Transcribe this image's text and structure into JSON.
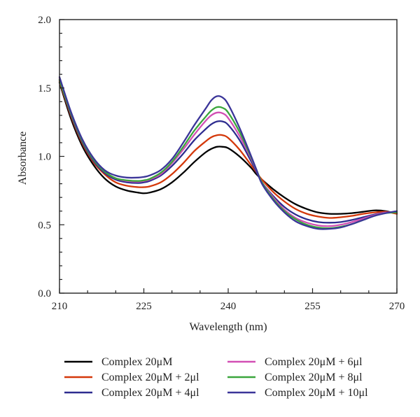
{
  "chart_data": {
    "type": "line",
    "title": "",
    "xlabel": "Wavelength (nm)",
    "ylabel": "Absorbance",
    "xlim": [
      210,
      270
    ],
    "ylim": [
      0.0,
      2.0
    ],
    "x_ticks": [
      210,
      225,
      240,
      255,
      270
    ],
    "x_tick_labels": [
      "210",
      "225",
      "240",
      "255",
      "270"
    ],
    "y_ticks": [
      0.0,
      0.5,
      1.0,
      1.5,
      2.0
    ],
    "y_tick_labels": [
      "0.0",
      "0.5",
      "1.0",
      "1.5",
      "2.0"
    ],
    "grid": false,
    "legend_position": "bottom",
    "x": [
      210,
      212,
      214,
      216,
      218,
      220,
      222,
      224,
      225,
      226,
      228,
      230,
      232,
      234,
      236,
      237,
      238,
      239,
      240,
      242,
      244,
      245,
      246,
      248,
      250,
      252,
      254,
      256,
      258,
      260,
      262,
      264,
      266,
      268,
      270
    ],
    "series": [
      {
        "name": "Complex 20μM",
        "color": "#000000",
        "values": [
          1.54,
          1.28,
          1.08,
          0.94,
          0.84,
          0.78,
          0.75,
          0.735,
          0.73,
          0.735,
          0.76,
          0.81,
          0.88,
          0.96,
          1.03,
          1.055,
          1.07,
          1.07,
          1.06,
          1.0,
          0.92,
          0.87,
          0.83,
          0.76,
          0.7,
          0.65,
          0.615,
          0.59,
          0.58,
          0.58,
          0.585,
          0.595,
          0.605,
          0.6,
          0.58
        ]
      },
      {
        "name": "Complex 20μM + 2μl",
        "color": "#d4380a",
        "values": [
          1.55,
          1.3,
          1.1,
          0.96,
          0.87,
          0.81,
          0.785,
          0.775,
          0.775,
          0.78,
          0.81,
          0.87,
          0.95,
          1.04,
          1.11,
          1.14,
          1.155,
          1.155,
          1.135,
          1.05,
          0.94,
          0.885,
          0.83,
          0.74,
          0.67,
          0.615,
          0.58,
          0.56,
          0.55,
          0.555,
          0.565,
          0.58,
          0.59,
          0.595,
          0.58
        ]
      },
      {
        "name": "Complex 20μM + 4μl",
        "color": "#2e2c8f",
        "values": [
          1.56,
          1.31,
          1.11,
          0.97,
          0.88,
          0.83,
          0.81,
          0.805,
          0.81,
          0.82,
          0.86,
          0.93,
          1.02,
          1.12,
          1.2,
          1.235,
          1.255,
          1.255,
          1.23,
          1.12,
          0.97,
          0.89,
          0.81,
          0.71,
          0.63,
          0.575,
          0.54,
          0.52,
          0.515,
          0.52,
          0.535,
          0.555,
          0.575,
          0.59,
          0.59
        ]
      },
      {
        "name": "Complex 20μM + 6μl",
        "color": "#d24fb4",
        "values": [
          1.57,
          1.32,
          1.12,
          0.98,
          0.89,
          0.84,
          0.82,
          0.815,
          0.82,
          0.83,
          0.87,
          0.95,
          1.05,
          1.16,
          1.26,
          1.3,
          1.32,
          1.315,
          1.28,
          1.15,
          0.99,
          0.9,
          0.81,
          0.7,
          0.61,
          0.55,
          0.515,
          0.495,
          0.49,
          0.5,
          0.52,
          0.545,
          0.57,
          0.59,
          0.59
        ]
      },
      {
        "name": "Complex 20μM + 8μl",
        "color": "#3aa63c",
        "values": [
          1.56,
          1.32,
          1.12,
          0.98,
          0.89,
          0.84,
          0.825,
          0.82,
          0.825,
          0.835,
          0.88,
          0.96,
          1.07,
          1.19,
          1.29,
          1.335,
          1.36,
          1.355,
          1.32,
          1.18,
          1.0,
          0.905,
          0.81,
          0.69,
          0.6,
          0.54,
          0.5,
          0.48,
          0.475,
          0.485,
          0.505,
          0.535,
          0.565,
          0.585,
          0.59
        ]
      },
      {
        "name": "Complex 20μM + 10μl",
        "color": "#3b3599",
        "values": [
          1.58,
          1.33,
          1.13,
          0.99,
          0.9,
          0.86,
          0.845,
          0.845,
          0.85,
          0.86,
          0.9,
          0.98,
          1.1,
          1.23,
          1.35,
          1.41,
          1.44,
          1.43,
          1.38,
          1.21,
          1.01,
          0.905,
          0.8,
          0.68,
          0.59,
          0.525,
          0.49,
          0.47,
          0.47,
          0.48,
          0.505,
          0.535,
          0.565,
          0.585,
          0.6
        ]
      }
    ]
  }
}
